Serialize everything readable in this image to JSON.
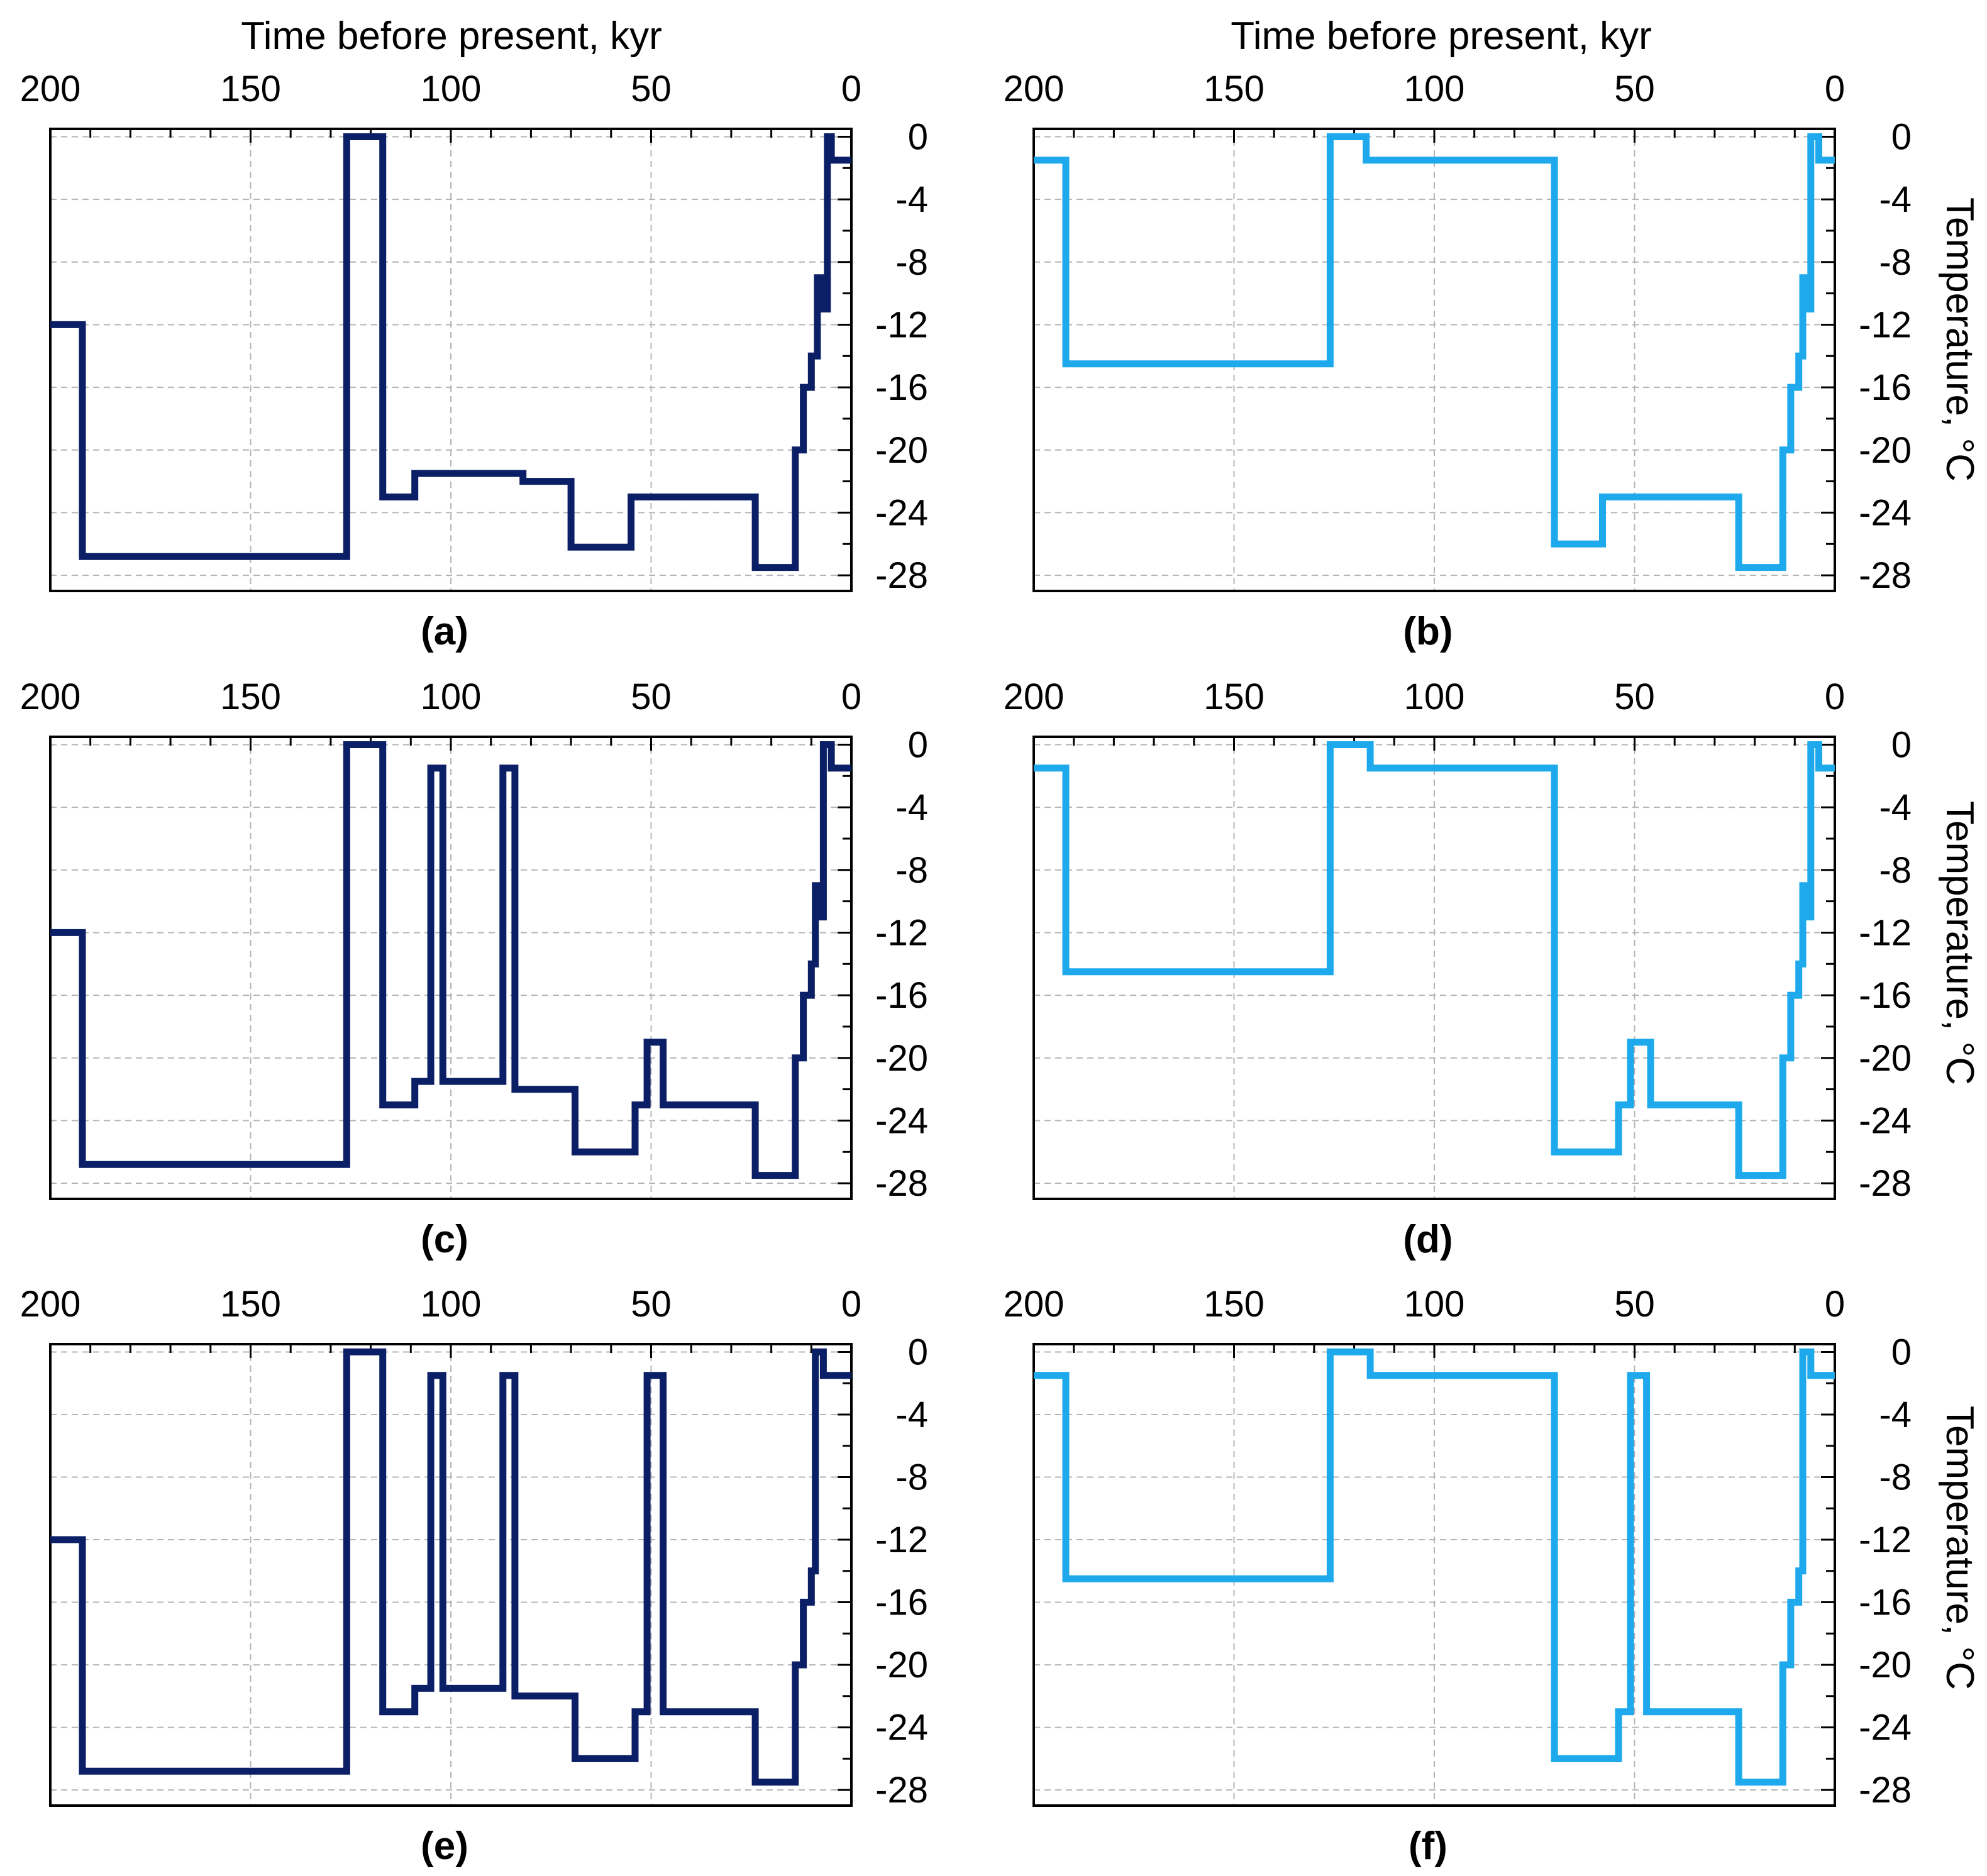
{
  "figure": {
    "x_axis_title": "Time before present, kyr",
    "y_axis_title": "Temperature, °C",
    "colors": {
      "dark_series": "#0b1f66",
      "light_series": "#1da9ec"
    }
  },
  "chart_data": [
    {
      "panel": "(a)",
      "type": "line",
      "series_name": "dark",
      "xlim": [
        200,
        0
      ],
      "ylim": [
        -29,
        0.5
      ],
      "xticks": [
        "200",
        "150",
        "100",
        "50",
        "0"
      ],
      "yticks": [
        "0",
        "-4",
        "-8",
        "-12",
        "-16",
        "-20",
        "-24",
        "-28"
      ],
      "points": [
        [
          200,
          -12
        ],
        [
          192,
          -12
        ],
        [
          192,
          -26.8
        ],
        [
          126,
          -26.8
        ],
        [
          126,
          0
        ],
        [
          117,
          0
        ],
        [
          117,
          -23
        ],
        [
          109,
          -23
        ],
        [
          109,
          -21.5
        ],
        [
          82,
          -21.5
        ],
        [
          82,
          -22
        ],
        [
          70,
          -22
        ],
        [
          70,
          -26.2
        ],
        [
          55,
          -26.2
        ],
        [
          55,
          -23
        ],
        [
          24,
          -23
        ],
        [
          24,
          -27.5
        ],
        [
          14,
          -27.5
        ],
        [
          14,
          -20
        ],
        [
          12,
          -20
        ],
        [
          12,
          -16
        ],
        [
          10,
          -16
        ],
        [
          10,
          -14
        ],
        [
          8.5,
          -14
        ],
        [
          8.5,
          -9
        ],
        [
          7,
          -9
        ],
        [
          7,
          -11
        ],
        [
          6,
          -11
        ],
        [
          6,
          0
        ],
        [
          5,
          0
        ],
        [
          5,
          -1.5
        ],
        [
          0,
          -1.5
        ]
      ]
    },
    {
      "panel": "(b)",
      "type": "line",
      "series_name": "light",
      "xlim": [
        200,
        0
      ],
      "ylim": [
        -29,
        0.5
      ],
      "xticks": [
        "200",
        "150",
        "100",
        "50",
        "0"
      ],
      "yticks": [
        "0",
        "-4",
        "-8",
        "-12",
        "-16",
        "-20",
        "-24",
        "-28"
      ],
      "points": [
        [
          200,
          -1.5
        ],
        [
          192,
          -1.5
        ],
        [
          192,
          -14.5
        ],
        [
          126,
          -14.5
        ],
        [
          126,
          0
        ],
        [
          117,
          0
        ],
        [
          117,
          -1.5
        ],
        [
          70,
          -1.5
        ],
        [
          70,
          -26
        ],
        [
          58,
          -26
        ],
        [
          58,
          -23
        ],
        [
          24,
          -23
        ],
        [
          24,
          -27.5
        ],
        [
          13,
          -27.5
        ],
        [
          13,
          -20
        ],
        [
          11,
          -20
        ],
        [
          11,
          -16
        ],
        [
          9,
          -16
        ],
        [
          9,
          -14
        ],
        [
          8,
          -14
        ],
        [
          8,
          -9
        ],
        [
          7,
          -9
        ],
        [
          7,
          -11
        ],
        [
          6,
          -11
        ],
        [
          6,
          0
        ],
        [
          4,
          0
        ],
        [
          4,
          -1.5
        ],
        [
          0,
          -1.5
        ]
      ]
    },
    {
      "panel": "(c)",
      "type": "line",
      "series_name": "dark",
      "xlim": [
        200,
        0
      ],
      "ylim": [
        -29,
        0.5
      ],
      "xticks": [
        "200",
        "150",
        "100",
        "50",
        "0"
      ],
      "yticks": [
        "0",
        "-4",
        "-8",
        "-12",
        "-16",
        "-20",
        "-24",
        "-28"
      ],
      "points": [
        [
          200,
          -12
        ],
        [
          192,
          -12
        ],
        [
          192,
          -26.8
        ],
        [
          126,
          -26.8
        ],
        [
          126,
          0
        ],
        [
          117,
          0
        ],
        [
          117,
          -23
        ],
        [
          109,
          -23
        ],
        [
          109,
          -21.5
        ],
        [
          105,
          -21.5
        ],
        [
          105,
          -1.5
        ],
        [
          102,
          -1.5
        ],
        [
          102,
          -21.5
        ],
        [
          87,
          -21.5
        ],
        [
          87,
          -1.5
        ],
        [
          84,
          -1.5
        ],
        [
          84,
          -22
        ],
        [
          69,
          -22
        ],
        [
          69,
          -26
        ],
        [
          54,
          -26
        ],
        [
          54,
          -23
        ],
        [
          51,
          -23
        ],
        [
          51,
          -19
        ],
        [
          47,
          -19
        ],
        [
          47,
          -23
        ],
        [
          24,
          -23
        ],
        [
          24,
          -27.5
        ],
        [
          14,
          -27.5
        ],
        [
          14,
          -20
        ],
        [
          12,
          -20
        ],
        [
          12,
          -16
        ],
        [
          10,
          -16
        ],
        [
          10,
          -14
        ],
        [
          9,
          -14
        ],
        [
          9,
          -9
        ],
        [
          8,
          -9
        ],
        [
          8,
          -11
        ],
        [
          7,
          -11
        ],
        [
          7,
          0
        ],
        [
          5,
          0
        ],
        [
          5,
          -1.5
        ],
        [
          0,
          -1.5
        ]
      ]
    },
    {
      "panel": "(d)",
      "type": "line",
      "series_name": "light",
      "xlim": [
        200,
        0
      ],
      "ylim": [
        -29,
        0.5
      ],
      "xticks": [
        "200",
        "150",
        "100",
        "50",
        "0"
      ],
      "yticks": [
        "0",
        "-4",
        "-8",
        "-12",
        "-16",
        "-20",
        "-24",
        "-28"
      ],
      "points": [
        [
          200,
          -1.5
        ],
        [
          192,
          -1.5
        ],
        [
          192,
          -14.5
        ],
        [
          126,
          -14.5
        ],
        [
          126,
          0
        ],
        [
          116,
          0
        ],
        [
          116,
          -1.5
        ],
        [
          70,
          -1.5
        ],
        [
          70,
          -26
        ],
        [
          54,
          -26
        ],
        [
          54,
          -23
        ],
        [
          51,
          -23
        ],
        [
          51,
          -19
        ],
        [
          46,
          -19
        ],
        [
          46,
          -23
        ],
        [
          24,
          -23
        ],
        [
          24,
          -27.5
        ],
        [
          13,
          -27.5
        ],
        [
          13,
          -20
        ],
        [
          11,
          -20
        ],
        [
          11,
          -16
        ],
        [
          9,
          -16
        ],
        [
          9,
          -14
        ],
        [
          8,
          -14
        ],
        [
          8,
          -9
        ],
        [
          7,
          -9
        ],
        [
          7,
          -11
        ],
        [
          6,
          -11
        ],
        [
          6,
          0
        ],
        [
          4,
          0
        ],
        [
          4,
          -1.5
        ],
        [
          0,
          -1.5
        ]
      ]
    },
    {
      "panel": "(e)",
      "type": "line",
      "series_name": "dark",
      "xlim": [
        200,
        0
      ],
      "ylim": [
        -29,
        0.5
      ],
      "xticks": [
        "200",
        "150",
        "100",
        "50",
        "0"
      ],
      "yticks": [
        "0",
        "-4",
        "-8",
        "-12",
        "-16",
        "-20",
        "-24",
        "-28"
      ],
      "points": [
        [
          200,
          -12
        ],
        [
          192,
          -12
        ],
        [
          192,
          -26.8
        ],
        [
          126,
          -26.8
        ],
        [
          126,
          0
        ],
        [
          117,
          0
        ],
        [
          117,
          -23
        ],
        [
          109,
          -23
        ],
        [
          109,
          -21.5
        ],
        [
          105,
          -21.5
        ],
        [
          105,
          -1.5
        ],
        [
          102,
          -1.5
        ],
        [
          102,
          -21.5
        ],
        [
          87,
          -21.5
        ],
        [
          87,
          -1.5
        ],
        [
          84,
          -1.5
        ],
        [
          84,
          -22
        ],
        [
          69,
          -22
        ],
        [
          69,
          -26
        ],
        [
          54,
          -26
        ],
        [
          54,
          -23
        ],
        [
          51,
          -23
        ],
        [
          51,
          -1.5
        ],
        [
          47,
          -1.5
        ],
        [
          47,
          -23
        ],
        [
          24,
          -23
        ],
        [
          24,
          -27.5
        ],
        [
          14,
          -27.5
        ],
        [
          14,
          -20
        ],
        [
          12,
          -20
        ],
        [
          12,
          -16
        ],
        [
          10,
          -16
        ],
        [
          10,
          -14
        ],
        [
          9,
          -14
        ],
        [
          9,
          0
        ],
        [
          7,
          0
        ],
        [
          7,
          -1.5
        ],
        [
          0,
          -1.5
        ]
      ]
    },
    {
      "panel": "(f)",
      "type": "line",
      "series_name": "light",
      "xlim": [
        200,
        0
      ],
      "ylim": [
        -29,
        0.5
      ],
      "xticks": [
        "200",
        "150",
        "100",
        "50",
        "0"
      ],
      "yticks": [
        "0",
        "-4",
        "-8",
        "-12",
        "-16",
        "-20",
        "-24",
        "-28"
      ],
      "points": [
        [
          200,
          -1.5
        ],
        [
          192,
          -1.5
        ],
        [
          192,
          -14.5
        ],
        [
          126,
          -14.5
        ],
        [
          126,
          0
        ],
        [
          116,
          0
        ],
        [
          116,
          -1.5
        ],
        [
          70,
          -1.5
        ],
        [
          70,
          -26
        ],
        [
          54,
          -26
        ],
        [
          54,
          -23
        ],
        [
          51,
          -23
        ],
        [
          51,
          -1.5
        ],
        [
          47,
          -1.5
        ],
        [
          47,
          -23
        ],
        [
          24,
          -23
        ],
        [
          24,
          -27.5
        ],
        [
          13,
          -27.5
        ],
        [
          13,
          -20
        ],
        [
          11,
          -20
        ],
        [
          11,
          -16
        ],
        [
          9,
          -16
        ],
        [
          9,
          -14
        ],
        [
          8,
          -14
        ],
        [
          8,
          0
        ],
        [
          6,
          0
        ],
        [
          6,
          -1.5
        ],
        [
          0,
          -1.5
        ]
      ]
    }
  ]
}
